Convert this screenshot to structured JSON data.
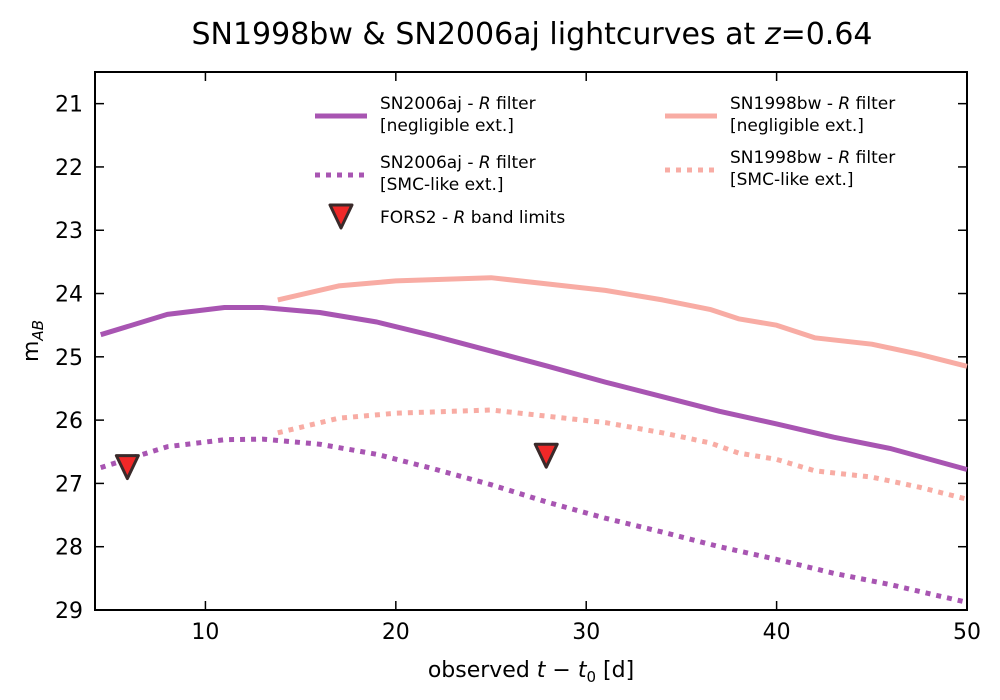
{
  "chart_data": {
    "type": "line",
    "title": {
      "prefix": "SN1998bw & SN2006aj lightcurves at ",
      "z": "z",
      "suffix": "=0.64"
    },
    "xlabel": {
      "prefix": "observed ",
      "var": "t",
      "minus": " − ",
      "t0": "t",
      "sub0": "0",
      "unit": " [d]"
    },
    "ylabel": {
      "main": "m",
      "sub": "AB"
    },
    "xlim": [
      4.2,
      50
    ],
    "ylim": [
      20.5,
      29
    ],
    "y_inverted": true,
    "xticks": [
      "10",
      "20",
      "30",
      "40",
      "50"
    ],
    "yticks": [
      "21",
      "22",
      "23",
      "24",
      "25",
      "26",
      "27",
      "28",
      "29"
    ],
    "colors": {
      "sn2006aj": "#a855b2",
      "sn1998bw": "#f8aca4",
      "marker": "#f02828",
      "marker_edge": "#3a2a2a"
    },
    "series": [
      {
        "name": "SN2006aj - R filter [negligible ext.]",
        "style": "solid",
        "color": "#a855b2",
        "x": [
          4.5,
          8,
          11,
          13,
          16,
          19,
          22,
          25,
          28,
          31,
          34,
          37,
          40,
          43,
          46,
          50
        ],
        "y": [
          24.65,
          24.33,
          24.22,
          24.22,
          24.3,
          24.45,
          24.67,
          24.91,
          25.15,
          25.4,
          25.63,
          25.86,
          26.06,
          26.27,
          26.45,
          26.78
        ]
      },
      {
        "name": "SN2006aj - R filter [SMC-like ext.]",
        "style": "dotted",
        "color": "#a855b2",
        "x": [
          4.5,
          8,
          11,
          13,
          16,
          19,
          22,
          25,
          28,
          31,
          34,
          37,
          40,
          43,
          46,
          50
        ],
        "y": [
          26.75,
          26.42,
          26.31,
          26.3,
          26.38,
          26.54,
          26.77,
          27.02,
          27.3,
          27.55,
          27.77,
          28.0,
          28.2,
          28.42,
          28.6,
          28.88
        ]
      },
      {
        "name": "SN1998bw - R filter [negligible ext.]",
        "style": "solid",
        "color": "#f8aca4",
        "x": [
          13.8,
          17,
          20,
          23,
          25,
          28,
          31,
          34,
          36.5,
          38,
          40,
          42,
          45,
          47.5,
          50
        ],
        "y": [
          24.1,
          23.88,
          23.8,
          23.77,
          23.75,
          23.85,
          23.95,
          24.1,
          24.25,
          24.4,
          24.5,
          24.7,
          24.8,
          24.96,
          25.15
        ]
      },
      {
        "name": "SN1998bw - R filter [SMC-like ext.]",
        "style": "dotted",
        "color": "#f8aca4",
        "x": [
          13.8,
          17,
          20,
          23,
          25,
          28,
          31,
          34,
          36.5,
          38,
          40,
          42,
          45,
          47.5,
          50
        ],
        "y": [
          26.2,
          25.97,
          25.89,
          25.86,
          25.84,
          25.94,
          26.04,
          26.2,
          26.36,
          26.52,
          26.62,
          26.8,
          26.9,
          27.06,
          27.25
        ]
      }
    ],
    "markers": {
      "name": "FORS2 - R band limits",
      "points": [
        {
          "x": 5.9,
          "y": 26.75
        },
        {
          "x": 27.9,
          "y": 26.57
        }
      ]
    },
    "legend": {
      "placement": "top",
      "entries": [
        {
          "line1_prefix": "SN2006aj - ",
          "filter": "R",
          "line1_suffix": " filter",
          "line2": "[negligible ext.]"
        },
        {
          "line1_prefix": "SN2006aj - ",
          "filter": "R",
          "line1_suffix": " filter",
          "line2": "[SMC-like ext.]"
        },
        {
          "prefix": "FORS2 - ",
          "band": "R",
          "suffix": " band limits"
        },
        {
          "line1_prefix": "SN1998bw - ",
          "filter": "R",
          "line1_suffix": " filter",
          "line2": "[negligible ext.]"
        },
        {
          "line1_prefix": "SN1998bw - ",
          "filter": "R",
          "line1_suffix": " filter",
          "line2": "[SMC-like ext.]"
        }
      ]
    }
  }
}
